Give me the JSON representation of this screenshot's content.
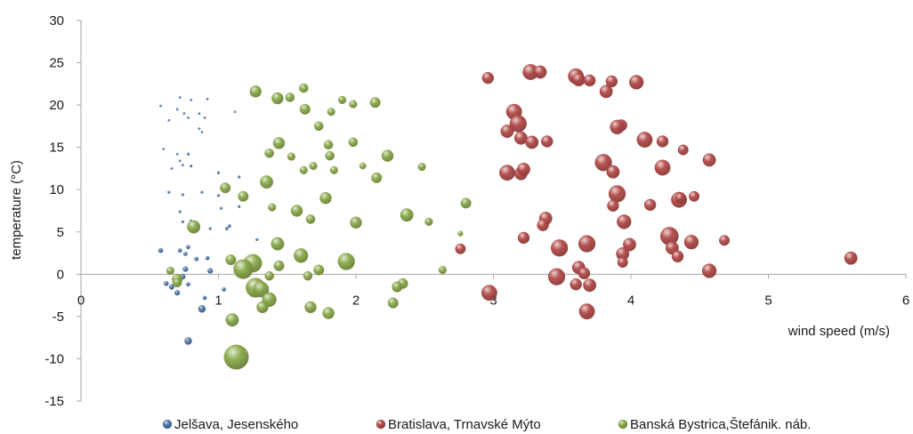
{
  "chart_data": {
    "type": "scatter",
    "subtype": "bubble",
    "title": "",
    "xlabel": "wind speed (m/s)",
    "ylabel": "temperature (°C)",
    "xlim": [
      0,
      6
    ],
    "ylim": [
      -15,
      30
    ],
    "x_ticks": [
      0,
      1,
      2,
      3,
      4,
      5,
      6
    ],
    "y_ticks": [
      -15,
      -10,
      -5,
      0,
      5,
      10,
      15,
      20,
      25,
      30
    ],
    "x_tick_labels": [
      "0",
      "1",
      "2",
      "3",
      "4",
      "5",
      "6"
    ],
    "y_tick_labels": [
      "-15",
      "-10",
      "-5",
      "0",
      "5",
      "10",
      "15",
      "20",
      "25",
      "30"
    ],
    "grid": false,
    "legend_position": "bottom",
    "series": [
      {
        "name": "Jelšava, Jesenského",
        "color": "#4f77aa",
        "points": [
          {
            "x": 0.58,
            "y": 19.9,
            "s": 0.8
          },
          {
            "x": 0.64,
            "y": 18.2,
            "s": 0.8
          },
          {
            "x": 0.7,
            "y": 19.5,
            "s": 0.8
          },
          {
            "x": 0.72,
            "y": 20.9,
            "s": 0.8
          },
          {
            "x": 0.75,
            "y": 19.0,
            "s": 0.8
          },
          {
            "x": 0.78,
            "y": 18.5,
            "s": 0.8
          },
          {
            "x": 0.8,
            "y": 20.6,
            "s": 0.8
          },
          {
            "x": 0.86,
            "y": 19.0,
            "s": 0.8
          },
          {
            "x": 0.9,
            "y": 18.5,
            "s": 0.8
          },
          {
            "x": 0.92,
            "y": 20.7,
            "s": 0.8
          },
          {
            "x": 0.86,
            "y": 17.2,
            "s": 0.8
          },
          {
            "x": 0.88,
            "y": 16.8,
            "s": 0.8
          },
          {
            "x": 1.12,
            "y": 19.2,
            "s": 0.8
          },
          {
            "x": 0.6,
            "y": 14.8,
            "s": 0.8
          },
          {
            "x": 0.7,
            "y": 14.2,
            "s": 0.8
          },
          {
            "x": 0.74,
            "y": 12.9,
            "s": 0.8
          },
          {
            "x": 0.66,
            "y": 12.5,
            "s": 0.8
          },
          {
            "x": 0.72,
            "y": 13.4,
            "s": 0.8
          },
          {
            "x": 0.8,
            "y": 12.8,
            "s": 1.0
          },
          {
            "x": 0.78,
            "y": 14.2,
            "s": 1.0
          },
          {
            "x": 0.64,
            "y": 9.7,
            "s": 1.0
          },
          {
            "x": 0.74,
            "y": 9.4,
            "s": 1.0
          },
          {
            "x": 0.88,
            "y": 9.7,
            "s": 1.0
          },
          {
            "x": 1.0,
            "y": 12.0,
            "s": 1.0
          },
          {
            "x": 1.15,
            "y": 11.5,
            "s": 1.0
          },
          {
            "x": 1.0,
            "y": 9.3,
            "s": 1.0
          },
          {
            "x": 1.02,
            "y": 7.8,
            "s": 1.0
          },
          {
            "x": 1.15,
            "y": 8.0,
            "s": 1.0
          },
          {
            "x": 0.72,
            "y": 7.4,
            "s": 1.0
          },
          {
            "x": 0.74,
            "y": 6.2,
            "s": 1.0
          },
          {
            "x": 0.8,
            "y": 6.3,
            "s": 1.0
          },
          {
            "x": 0.94,
            "y": 5.4,
            "s": 1.0
          },
          {
            "x": 1.06,
            "y": 5.4,
            "s": 1.2
          },
          {
            "x": 1.08,
            "y": 5.7,
            "s": 1.2
          },
          {
            "x": 1.28,
            "y": 4.1,
            "s": 1.0
          },
          {
            "x": 0.58,
            "y": 2.8,
            "s": 1.8
          },
          {
            "x": 0.72,
            "y": 2.8,
            "s": 1.5
          },
          {
            "x": 0.76,
            "y": 2.4,
            "s": 1.5
          },
          {
            "x": 0.78,
            "y": 3.2,
            "s": 1.5
          },
          {
            "x": 0.84,
            "y": 1.8,
            "s": 1.5
          },
          {
            "x": 0.92,
            "y": 1.9,
            "s": 1.5
          },
          {
            "x": 0.94,
            "y": 0.4,
            "s": 2.0
          },
          {
            "x": 0.76,
            "y": 0.6,
            "s": 2.0
          },
          {
            "x": 0.74,
            "y": -0.3,
            "s": 2.0
          },
          {
            "x": 0.62,
            "y": -1.1,
            "s": 1.8
          },
          {
            "x": 0.66,
            "y": -1.5,
            "s": 2.0
          },
          {
            "x": 0.7,
            "y": -2.2,
            "s": 2.0
          },
          {
            "x": 0.78,
            "y": -1.2,
            "s": 1.5
          },
          {
            "x": 1.04,
            "y": -1.8,
            "s": 1.5
          },
          {
            "x": 0.9,
            "y": -2.8,
            "s": 1.5
          },
          {
            "x": 0.88,
            "y": -4.1,
            "s": 2.8
          },
          {
            "x": 0.78,
            "y": -7.9,
            "s": 2.8
          }
        ]
      },
      {
        "name": "Bratislava, Trnavské Mýto",
        "color": "#b24a48",
        "points": [
          {
            "x": 2.96,
            "y": 23.2,
            "s": 4.5
          },
          {
            "x": 3.27,
            "y": 23.9,
            "s": 6.0
          },
          {
            "x": 3.34,
            "y": 23.9,
            "s": 5.0
          },
          {
            "x": 3.6,
            "y": 23.4,
            "s": 6.0
          },
          {
            "x": 3.62,
            "y": 23.0,
            "s": 5.0
          },
          {
            "x": 3.7,
            "y": 22.9,
            "s": 4.5
          },
          {
            "x": 3.86,
            "y": 22.8,
            "s": 4.5
          },
          {
            "x": 4.04,
            "y": 22.7,
            "s": 5.5
          },
          {
            "x": 3.82,
            "y": 21.6,
            "s": 5.0
          },
          {
            "x": 3.15,
            "y": 19.2,
            "s": 6.0
          },
          {
            "x": 3.18,
            "y": 17.8,
            "s": 6.5
          },
          {
            "x": 3.1,
            "y": 16.9,
            "s": 5.0
          },
          {
            "x": 3.2,
            "y": 16.1,
            "s": 5.0
          },
          {
            "x": 3.28,
            "y": 15.6,
            "s": 5.0
          },
          {
            "x": 3.39,
            "y": 15.7,
            "s": 4.5
          },
          {
            "x": 3.93,
            "y": 17.6,
            "s": 4.5
          },
          {
            "x": 3.9,
            "y": 17.4,
            "s": 5.5
          },
          {
            "x": 4.1,
            "y": 15.9,
            "s": 6.0
          },
          {
            "x": 4.23,
            "y": 15.7,
            "s": 4.5
          },
          {
            "x": 4.38,
            "y": 14.7,
            "s": 4.0
          },
          {
            "x": 3.8,
            "y": 13.2,
            "s": 6.5
          },
          {
            "x": 3.87,
            "y": 12.1,
            "s": 5.0
          },
          {
            "x": 4.23,
            "y": 12.6,
            "s": 6.0
          },
          {
            "x": 4.57,
            "y": 13.5,
            "s": 5.0
          },
          {
            "x": 3.1,
            "y": 12.0,
            "s": 6.0
          },
          {
            "x": 3.2,
            "y": 11.9,
            "s": 5.0
          },
          {
            "x": 3.22,
            "y": 12.4,
            "s": 5.0
          },
          {
            "x": 3.9,
            "y": 9.5,
            "s": 6.5
          },
          {
            "x": 3.87,
            "y": 8.1,
            "s": 4.5
          },
          {
            "x": 4.14,
            "y": 8.2,
            "s": 4.5
          },
          {
            "x": 4.35,
            "y": 8.8,
            "s": 6.0
          },
          {
            "x": 4.36,
            "y": 9.0,
            "s": 4.0
          },
          {
            "x": 4.46,
            "y": 9.2,
            "s": 4.0
          },
          {
            "x": 3.38,
            "y": 6.6,
            "s": 5.0
          },
          {
            "x": 3.36,
            "y": 5.8,
            "s": 4.5
          },
          {
            "x": 3.22,
            "y": 4.3,
            "s": 4.5
          },
          {
            "x": 3.95,
            "y": 6.2,
            "s": 5.5
          },
          {
            "x": 4.28,
            "y": 4.5,
            "s": 7.0
          },
          {
            "x": 4.3,
            "y": 3.1,
            "s": 5.0
          },
          {
            "x": 4.44,
            "y": 3.8,
            "s": 5.5
          },
          {
            "x": 4.68,
            "y": 4.0,
            "s": 4.0
          },
          {
            "x": 3.99,
            "y": 3.5,
            "s": 5.0
          },
          {
            "x": 3.94,
            "y": 2.4,
            "s": 5.0
          },
          {
            "x": 3.94,
            "y": 1.4,
            "s": 4.0
          },
          {
            "x": 4.34,
            "y": 2.1,
            "s": 4.5
          },
          {
            "x": 3.68,
            "y": 3.6,
            "s": 6.5
          },
          {
            "x": 3.48,
            "y": 3.1,
            "s": 6.5
          },
          {
            "x": 3.62,
            "y": 0.8,
            "s": 5.0
          },
          {
            "x": 3.66,
            "y": 0.1,
            "s": 4.5
          },
          {
            "x": 3.6,
            "y": -1.2,
            "s": 4.5
          },
          {
            "x": 3.7,
            "y": -1.3,
            "s": 5.0
          },
          {
            "x": 3.46,
            "y": -0.3,
            "s": 6.5
          },
          {
            "x": 4.57,
            "y": 0.4,
            "s": 5.5
          },
          {
            "x": 5.6,
            "y": 1.9,
            "s": 5.0
          },
          {
            "x": 2.97,
            "y": -2.2,
            "s": 6.0
          },
          {
            "x": 3.68,
            "y": -4.4,
            "s": 6.0
          },
          {
            "x": 2.76,
            "y": 3.0,
            "s": 4.0
          }
        ]
      },
      {
        "name": "Banská Bystrica,Štefánik. náb.",
        "color": "#8aa94a",
        "points": [
          {
            "x": 1.27,
            "y": 21.6,
            "s": 4.5
          },
          {
            "x": 1.43,
            "y": 20.8,
            "s": 4.5
          },
          {
            "x": 1.52,
            "y": 20.9,
            "s": 3.5
          },
          {
            "x": 1.62,
            "y": 22.0,
            "s": 3.5
          },
          {
            "x": 1.63,
            "y": 19.5,
            "s": 4.0
          },
          {
            "x": 1.82,
            "y": 19.2,
            "s": 3.0
          },
          {
            "x": 1.9,
            "y": 20.6,
            "s": 3.0
          },
          {
            "x": 1.98,
            "y": 20.1,
            "s": 3.0
          },
          {
            "x": 2.14,
            "y": 20.3,
            "s": 4.0
          },
          {
            "x": 1.73,
            "y": 17.5,
            "s": 3.5
          },
          {
            "x": 1.44,
            "y": 15.5,
            "s": 4.5
          },
          {
            "x": 1.37,
            "y": 14.3,
            "s": 3.5
          },
          {
            "x": 1.53,
            "y": 13.9,
            "s": 3.0
          },
          {
            "x": 1.8,
            "y": 15.3,
            "s": 3.5
          },
          {
            "x": 1.81,
            "y": 14.0,
            "s": 3.5
          },
          {
            "x": 1.98,
            "y": 15.6,
            "s": 3.5
          },
          {
            "x": 2.23,
            "y": 14.0,
            "s": 4.5
          },
          {
            "x": 2.05,
            "y": 12.8,
            "s": 2.5
          },
          {
            "x": 2.48,
            "y": 12.7,
            "s": 3.0
          },
          {
            "x": 1.62,
            "y": 12.3,
            "s": 3.0
          },
          {
            "x": 1.69,
            "y": 12.8,
            "s": 3.0
          },
          {
            "x": 1.84,
            "y": 12.3,
            "s": 3.0
          },
          {
            "x": 2.15,
            "y": 11.4,
            "s": 4.0
          },
          {
            "x": 1.35,
            "y": 10.9,
            "s": 5.0
          },
          {
            "x": 1.05,
            "y": 10.2,
            "s": 4.0
          },
          {
            "x": 1.18,
            "y": 9.2,
            "s": 4.0
          },
          {
            "x": 1.78,
            "y": 9.0,
            "s": 4.5
          },
          {
            "x": 1.39,
            "y": 7.9,
            "s": 3.0
          },
          {
            "x": 1.57,
            "y": 7.5,
            "s": 4.5
          },
          {
            "x": 1.67,
            "y": 6.5,
            "s": 3.5
          },
          {
            "x": 2.0,
            "y": 6.1,
            "s": 4.5
          },
          {
            "x": 2.37,
            "y": 7.0,
            "s": 5.0
          },
          {
            "x": 2.53,
            "y": 6.2,
            "s": 3.0
          },
          {
            "x": 2.8,
            "y": 8.4,
            "s": 4.0
          },
          {
            "x": 2.76,
            "y": 4.8,
            "s": 2.0
          },
          {
            "x": 0.82,
            "y": 5.6,
            "s": 5.0
          },
          {
            "x": 1.43,
            "y": 3.6,
            "s": 5.0
          },
          {
            "x": 1.6,
            "y": 2.2,
            "s": 5.5
          },
          {
            "x": 1.93,
            "y": 1.5,
            "s": 6.5
          },
          {
            "x": 1.09,
            "y": 1.7,
            "s": 4.0
          },
          {
            "x": 1.25,
            "y": 1.3,
            "s": 7.0
          },
          {
            "x": 1.18,
            "y": 0.6,
            "s": 7.5
          },
          {
            "x": 1.44,
            "y": 1.0,
            "s": 4.0
          },
          {
            "x": 1.73,
            "y": 0.5,
            "s": 4.0
          },
          {
            "x": 1.37,
            "y": -0.2,
            "s": 3.5
          },
          {
            "x": 1.65,
            "y": -0.2,
            "s": 3.5
          },
          {
            "x": 2.63,
            "y": 0.5,
            "s": 3.0
          },
          {
            "x": 0.65,
            "y": 0.4,
            "s": 3.0
          },
          {
            "x": 0.7,
            "y": -0.6,
            "s": 4.0
          },
          {
            "x": 0.7,
            "y": -1.0,
            "s": 3.5
          },
          {
            "x": 1.27,
            "y": -1.6,
            "s": 7.5
          },
          {
            "x": 1.31,
            "y": -1.8,
            "s": 6.0
          },
          {
            "x": 1.37,
            "y": -3.0,
            "s": 5.5
          },
          {
            "x": 1.32,
            "y": -3.9,
            "s": 4.5
          },
          {
            "x": 2.34,
            "y": -1.1,
            "s": 4.0
          },
          {
            "x": 2.3,
            "y": -1.5,
            "s": 4.0
          },
          {
            "x": 2.27,
            "y": -3.4,
            "s": 4.0
          },
          {
            "x": 1.67,
            "y": -3.9,
            "s": 4.5
          },
          {
            "x": 1.8,
            "y": -4.6,
            "s": 4.5
          },
          {
            "x": 1.1,
            "y": -5.4,
            "s": 5.0
          },
          {
            "x": 1.13,
            "y": -9.8,
            "s": 9.5
          }
        ]
      }
    ]
  }
}
